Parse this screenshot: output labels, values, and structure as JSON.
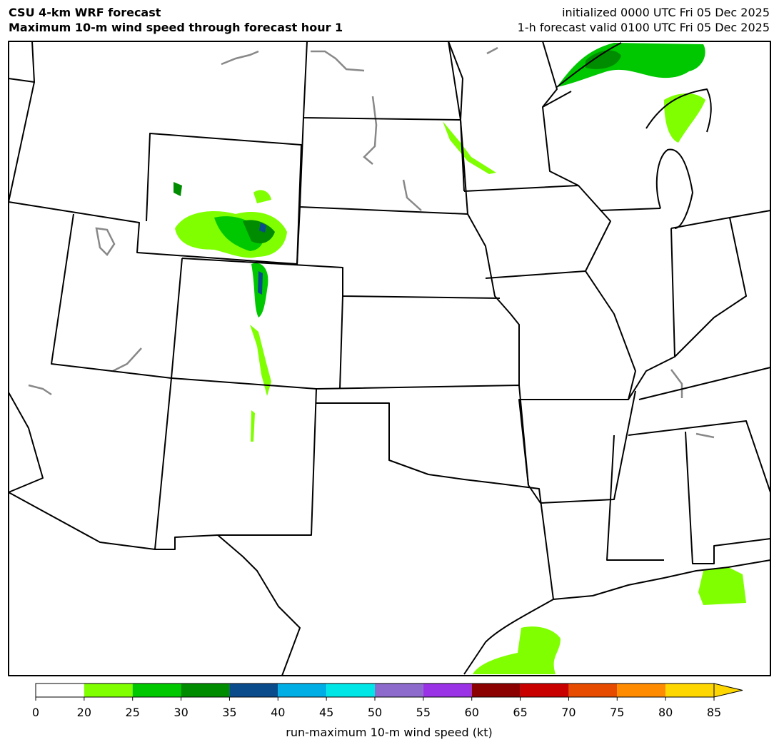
{
  "header": {
    "title_left": [
      "CSU 4-km WRF forecast",
      "Maximum 10-m wind speed through forecast hour 1"
    ],
    "title_right": [
      "initialized 0000 UTC Fri 05 Dec 2025",
      "1-h forecast valid 0100 UTC Fri 05 Dec 2025"
    ]
  },
  "colorbar": {
    "ticks": [
      0,
      20,
      25,
      30,
      35,
      40,
      45,
      50,
      55,
      60,
      65,
      70,
      75,
      80,
      85
    ],
    "colors": [
      "#ffffff",
      "#7fff00",
      "#00c800",
      "#008c00",
      "#0a4b8c",
      "#00aee6",
      "#00e6e6",
      "#8c6bcc",
      "#9a32e6",
      "#8b0000",
      "#c80000",
      "#e64b00",
      "#ff8c00",
      "#ffd700"
    ],
    "extend_color": "#ffd700",
    "label": "run-maximum 10-m wind speed (kt)"
  }
}
